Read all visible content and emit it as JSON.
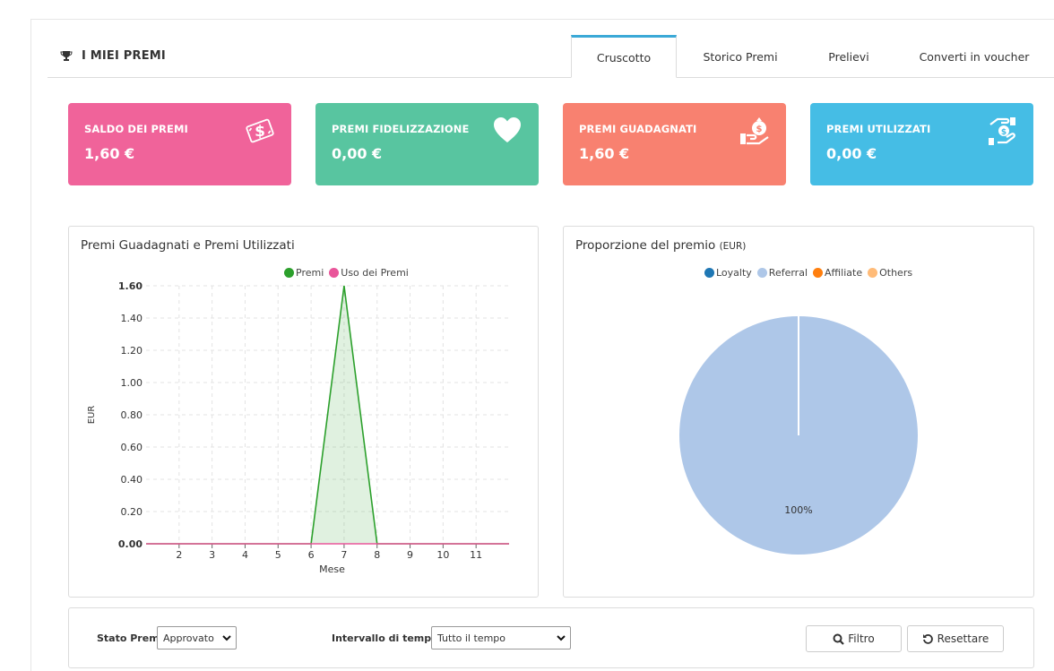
{
  "header": {
    "title": "I MIEI PREMI",
    "title_icon": "trophy-icon"
  },
  "tabs": [
    {
      "label": "Cruscotto",
      "active": true
    },
    {
      "label": "Storico Premi",
      "active": false
    },
    {
      "label": "Prelievi",
      "active": false
    },
    {
      "label": "Converti in voucher",
      "active": false
    }
  ],
  "cards": [
    {
      "label": "SALDO DEI PREMI",
      "value": "1,60 €",
      "color": "#f0639a",
      "icon": "money-icon"
    },
    {
      "label": "PREMI FIDELIZZAZIONE",
      "value": "0,00 €",
      "color": "#58c5a0",
      "icon": "heart-icon"
    },
    {
      "label": "PREMI GUADAGNATI",
      "value": "1,60 €",
      "color": "#f88170",
      "icon": "money-bag-hand-icon"
    },
    {
      "label": "PREMI UTILIZZATI",
      "value": "0,00 €",
      "color": "#45bde5",
      "icon": "hand-coin-icon"
    }
  ],
  "line_chart": {
    "title": "Premi Guadagnati e Premi Utilizzati"
  },
  "pie_chart": {
    "title": "Proporzione del premio",
    "unit": "(EUR)"
  },
  "chart_data": [
    {
      "type": "area",
      "title": "Premi Guadagnati e Premi Utilizzati",
      "xlabel": "Mese",
      "ylabel": "EUR",
      "x": [
        1,
        2,
        3,
        4,
        5,
        6,
        7,
        8,
        9,
        10,
        11,
        12
      ],
      "x_tick_labels": [
        "2",
        "3",
        "4",
        "5",
        "6",
        "7",
        "8",
        "9",
        "10",
        "11"
      ],
      "y_tick_labels": [
        "0.00",
        "0.20",
        "0.40",
        "0.60",
        "0.80",
        "1.00",
        "1.20",
        "1.40",
        "1.60"
      ],
      "ylim": [
        0,
        1.6
      ],
      "xlim": [
        1,
        12
      ],
      "grid": true,
      "legend_position": "top",
      "series": [
        {
          "name": "Premi",
          "color": "#2ca02c",
          "values": [
            0,
            0,
            0,
            0,
            0,
            0,
            1.6,
            0,
            0,
            0,
            0,
            0
          ]
        },
        {
          "name": "Uso dei Premi",
          "color": "#e9559a",
          "values": [
            0,
            0,
            0,
            0,
            0,
            0,
            0,
            0,
            0,
            0,
            0,
            0
          ]
        }
      ]
    },
    {
      "type": "pie",
      "title": "Proporzione del premio",
      "unit": "EUR",
      "legend_position": "top",
      "slices": [
        {
          "name": "Loyalty",
          "value": 0,
          "color": "#1f77b4"
        },
        {
          "name": "Referral",
          "value": 100,
          "color": "#aec7e8"
        },
        {
          "name": "Affiliate",
          "value": 0,
          "color": "#ff7f0e"
        },
        {
          "name": "Others",
          "value": 0,
          "color": "#ffbb78"
        }
      ],
      "labels": [
        "100%"
      ]
    }
  ],
  "filters": {
    "status_label": "Stato Premi",
    "status_value": "Approvato",
    "interval_label": "Intervallo di tempo",
    "interval_value": "Tutto il tempo",
    "filter_button": "Filtro",
    "reset_button": "Resettare"
  }
}
